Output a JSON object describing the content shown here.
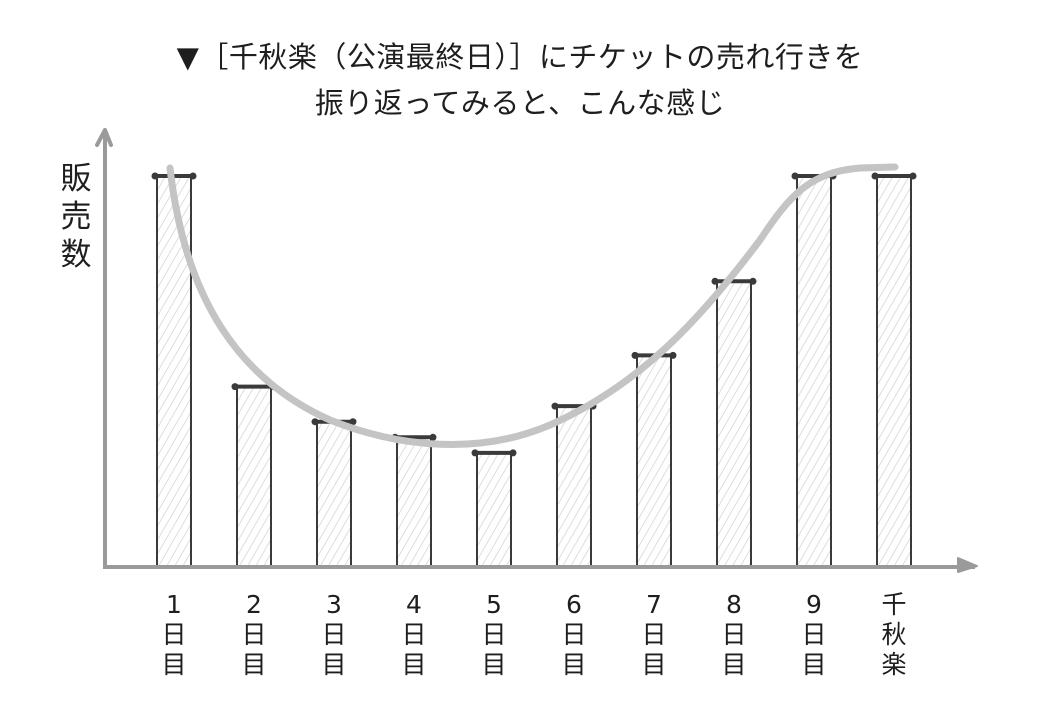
{
  "title": {
    "marker": "▼",
    "line1": "［千秋楽（公演最終日）］にチケットの売れ行きを",
    "line2": "振り返ってみると、こんな感じ"
  },
  "axes": {
    "ylabel_chars": [
      "販",
      "売",
      "数"
    ],
    "axis_color": "#9a9a9a"
  },
  "categories": [
    {
      "num": "1",
      "suffix": [
        "日",
        "目"
      ]
    },
    {
      "num": "2",
      "suffix": [
        "日",
        "目"
      ]
    },
    {
      "num": "3",
      "suffix": [
        "日",
        "目"
      ]
    },
    {
      "num": "4",
      "suffix": [
        "日",
        "目"
      ]
    },
    {
      "num": "5",
      "suffix": [
        "日",
        "目"
      ]
    },
    {
      "num": "6",
      "suffix": [
        "日",
        "目"
      ]
    },
    {
      "num": "7",
      "suffix": [
        "日",
        "目"
      ]
    },
    {
      "num": "8",
      "suffix": [
        "日",
        "目"
      ]
    },
    {
      "num": "9",
      "suffix": [
        "日",
        "目"
      ]
    },
    {
      "num": "千",
      "suffix": [
        "秋",
        "楽"
      ]
    }
  ],
  "colors": {
    "bar_outline": "#3a3a3a",
    "bar_hatch": "#c8c8c8",
    "trend_curve": "#c4c4c4"
  },
  "chart_data": {
    "type": "bar",
    "title": "▼［千秋楽（公演最終日）］にチケットの売れ行きを振り返ってみると、こんな感じ",
    "xlabel": "",
    "ylabel": "販売数",
    "categories": [
      "1日目",
      "2日目",
      "3日目",
      "4日目",
      "5日目",
      "6日目",
      "7日目",
      "8日目",
      "9日目",
      "千秋楽"
    ],
    "values": [
      100,
      46,
      37,
      33,
      29,
      41,
      54,
      73,
      100,
      100
    ],
    "units": "relative (no numeric ticks shown)",
    "ylim": [
      0,
      100
    ],
    "grid": false,
    "legend": "none",
    "overlay": {
      "type": "smooth trend curve",
      "shape": "U-shaped: high on day 1, dips around days 4-5, rises to plateau at day 9 and 千秋楽"
    }
  }
}
